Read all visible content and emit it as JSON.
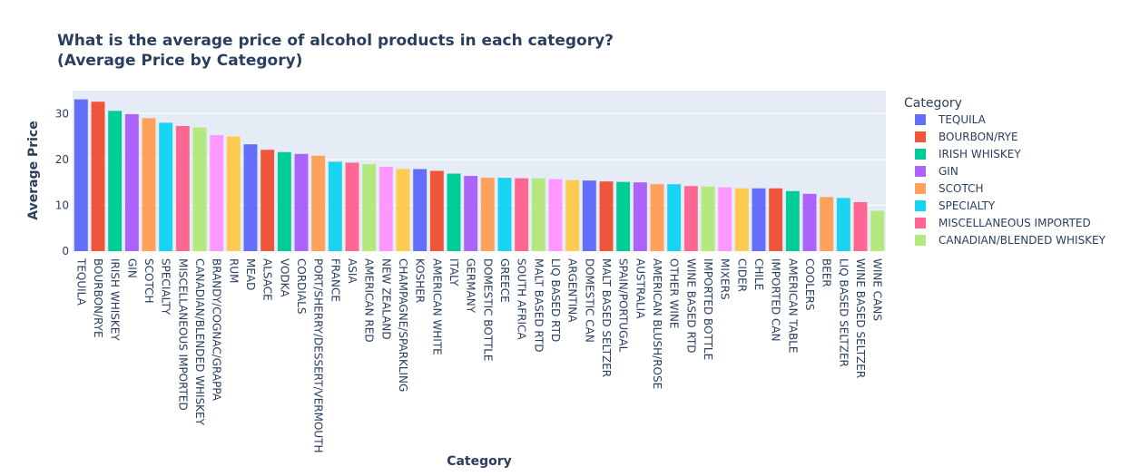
{
  "chart_data": {
    "type": "bar",
    "title": "What is the average price of alcohol products in each category?",
    "subtitle": "(Average Price by Category)",
    "xlabel": "Category",
    "ylabel": "Average Price",
    "ylim": [
      0,
      35
    ],
    "y_ticks": [
      0,
      10,
      20,
      30
    ],
    "grid": true,
    "legend_title": "Category",
    "legend_position": "right",
    "palette": [
      "#636efa",
      "#ef553b",
      "#00cc96",
      "#ab63fa",
      "#ffa15a",
      "#19d3f3",
      "#ff6692",
      "#b6e880",
      "#ff97ff",
      "#fecb52"
    ],
    "categories": [
      "TEQUILA",
      "BOURBON/RYE",
      "IRISH WHISKEY",
      "GIN",
      "SCOTCH",
      "SPECIALTY",
      "MISCELLANEOUS IMPORTED",
      "CANADIAN/BLENDED WHISKEY",
      "BRANDY/COGNAC/GRAPPA",
      "RUM",
      "MEAD",
      "ALSACE",
      "VODKA",
      "CORDIALS",
      "PORT/SHERRY/DESSERT/VERMOUTH",
      "FRANCE",
      "ASIA",
      "AMERICAN RED",
      "NEW ZEALAND",
      "CHAMPAGNE/SPARKLING",
      "KOSHER",
      "AMERICAN WHITE",
      "ITALY",
      "GERMANY",
      "DOMESTIC BOTTLE",
      "GREECE",
      "SOUTH AFRICA",
      "MALT BASED RTD",
      "LIQ BASED RTD",
      "ARGENTINA",
      "DOMESTIC CAN",
      "MALT BASED SELTZER",
      "SPAIN/PORTUGAL",
      "AUSTRALIA",
      "AMERICAN BLUSH/ROSE",
      "OTHER WINE",
      "WINE BASED RTD",
      "IMPORTED BOTTLE",
      "MIXERS",
      "CIDER",
      "CHILE",
      "IMPORTED CAN",
      "AMERICAN TABLE",
      "COOLERS",
      "BEER",
      "LIQ BASED SELTZER",
      "WINE BASED SELTZER",
      "WINE CANS"
    ],
    "values": [
      33.1,
      32.6,
      30.6,
      29.9,
      29.0,
      28.0,
      27.3,
      27.0,
      25.3,
      25.0,
      23.3,
      22.1,
      21.6,
      21.2,
      20.8,
      19.5,
      19.3,
      19.0,
      18.4,
      17.9,
      17.9,
      17.5,
      16.9,
      16.4,
      16.0,
      16.0,
      15.9,
      15.9,
      15.7,
      15.5,
      15.4,
      15.2,
      15.1,
      15.0,
      14.6,
      14.6,
      14.2,
      14.1,
      13.9,
      13.7,
      13.7,
      13.7,
      13.1,
      12.5,
      11.8,
      11.6,
      10.7,
      8.8
    ],
    "legend_entries": [
      "TEQUILA",
      "BOURBON/RYE",
      "IRISH WHISKEY",
      "GIN",
      "SCOTCH",
      "SPECIALTY",
      "MISCELLANEOUS IMPORTED",
      "CANADIAN/BLENDED WHISKEY"
    ]
  }
}
